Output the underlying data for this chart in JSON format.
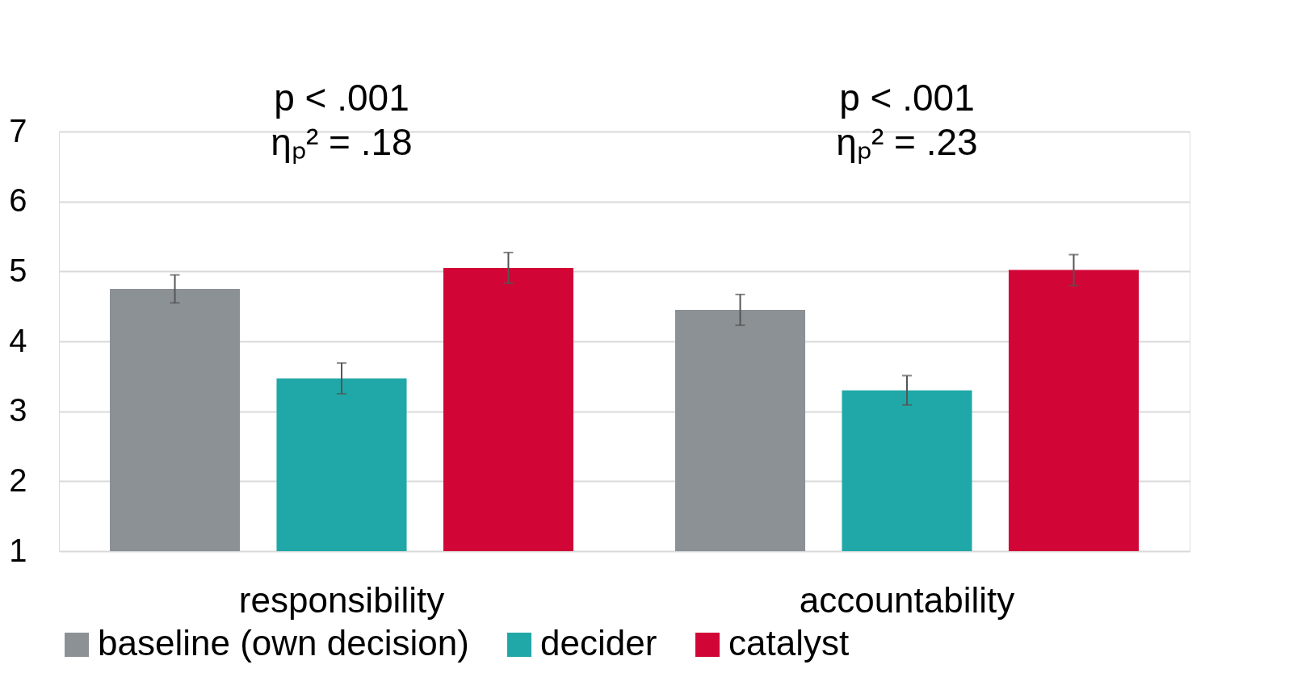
{
  "chart_data": {
    "type": "bar",
    "categories": [
      "responsibility",
      "accountability"
    ],
    "series": [
      {
        "name": "baseline (own decision)",
        "color": "#8c9196",
        "values": [
          4.75,
          4.45
        ],
        "errors": [
          0.2,
          0.22
        ]
      },
      {
        "name": "decider",
        "color": "#20a8a8",
        "values": [
          3.47,
          3.3
        ],
        "errors": [
          0.22,
          0.21
        ]
      },
      {
        "name": "catalyst",
        "color": "#d10636",
        "values": [
          5.05,
          5.02
        ],
        "errors": [
          0.22,
          0.22
        ]
      }
    ],
    "ylim": [
      1,
      7
    ],
    "yticks": [
      1,
      2,
      3,
      4,
      5,
      6,
      7
    ],
    "grid": "y",
    "legend": "bottom",
    "annotations": [
      "p < .001",
      "ηₚ² = .18",
      "p < .001",
      "ηₚ² = .23"
    ]
  }
}
